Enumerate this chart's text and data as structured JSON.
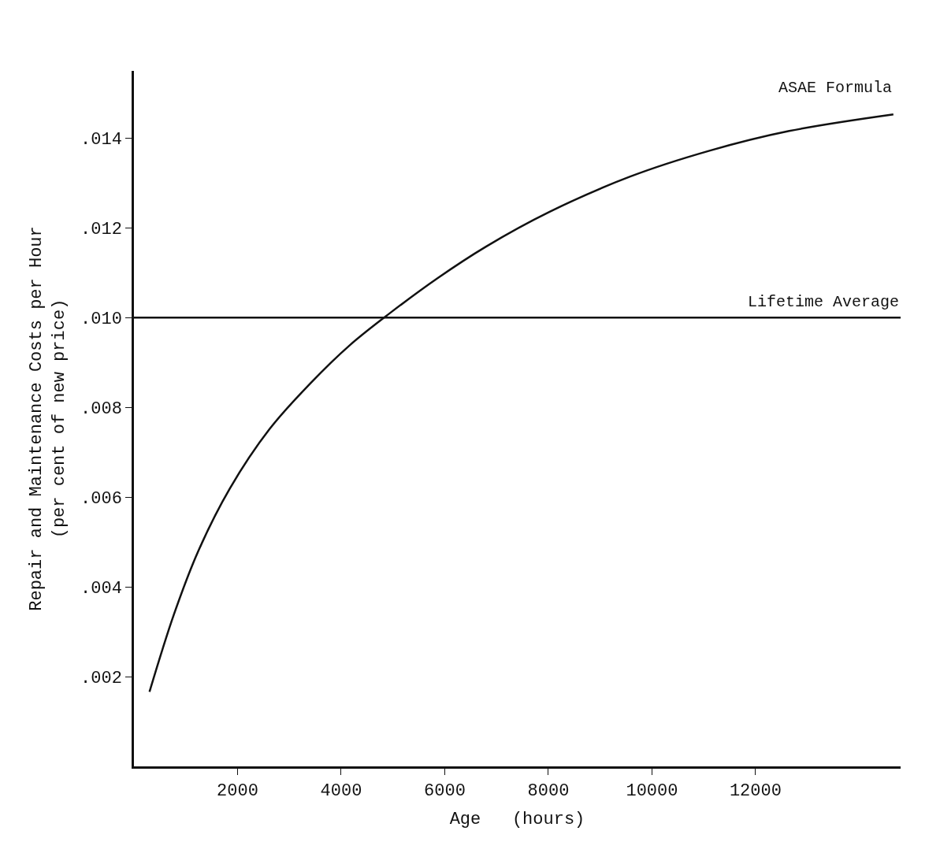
{
  "chart_data": {
    "type": "line",
    "xlabel": "Age   (hours)",
    "ylabel": "Repair and Maintenance Costs per Hour\n(per cent of new price)",
    "series": [
      {
        "name": "ASAE Formula",
        "color": "#111111",
        "x": [
          300,
          770,
          1235,
          1850,
          2620,
          3400,
          4170,
          4940,
          5860,
          6790,
          8025,
          9570,
          11110,
          12650,
          14660
        ],
        "values": [
          0.00166,
          0.00338,
          0.00478,
          0.00619,
          0.00752,
          0.00853,
          0.00939,
          0.0101,
          0.01088,
          0.01158,
          0.01236,
          0.01314,
          0.01372,
          0.01416,
          0.01453
        ]
      }
    ],
    "ref_lines": [
      {
        "axis": "y",
        "value": 0.01,
        "label": "Lifetime Average",
        "color": "#111111"
      }
    ],
    "xlim": [
      0,
      14800
    ],
    "ylim": [
      0,
      0.0155
    ],
    "xticks": [
      2000,
      4000,
      6000,
      8000,
      10000,
      12000
    ],
    "yticks": [
      {
        "value": 0.002,
        "label": ".002"
      },
      {
        "value": 0.004,
        "label": ".004"
      },
      {
        "value": 0.006,
        "label": ".006"
      },
      {
        "value": 0.008,
        "label": ".008"
      },
      {
        "value": 0.01,
        "label": ".010"
      },
      {
        "value": 0.012,
        "label": ".012"
      },
      {
        "value": 0.014,
        "label": ".014"
      }
    ],
    "legend": false,
    "marker": "none",
    "line_style": "solid"
  }
}
